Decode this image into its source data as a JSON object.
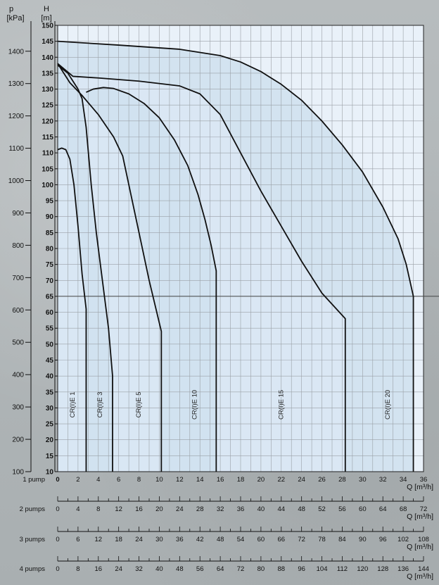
{
  "chart_data": {
    "type": "line",
    "p_axis": {
      "label_top": "p",
      "label_bottom": "[kPa]",
      "range": [
        100,
        1480
      ],
      "ticks": [
        100,
        200,
        300,
        400,
        500,
        600,
        700,
        800,
        900,
        1000,
        1100,
        1200,
        1300,
        1400
      ]
    },
    "h_axis": {
      "label_top": "H",
      "label_bottom": "[m]",
      "range": [
        10,
        150
      ],
      "ticks": [
        10,
        15,
        20,
        25,
        30,
        35,
        40,
        45,
        50,
        55,
        60,
        65,
        70,
        75,
        80,
        85,
        90,
        95,
        100,
        105,
        110,
        115,
        120,
        125,
        130,
        135,
        140,
        145,
        150
      ]
    },
    "x_range": [
      0,
      36
    ],
    "reference_line_h": 65,
    "q_label": "Q [m³/h]",
    "q_axes": [
      {
        "name": "1 pump",
        "ticks": [
          "0",
          "2",
          "4",
          "6",
          "8",
          "10",
          "12",
          "14",
          "16",
          "18",
          "20",
          "22",
          "24",
          "26",
          "28",
          "30",
          "32",
          "34",
          "36"
        ]
      },
      {
        "name": "2 pumps",
        "ticks": [
          "0",
          "4",
          "8",
          "12",
          "16",
          "20",
          "24",
          "28",
          "32",
          "36",
          "40",
          "44",
          "48",
          "52",
          "56",
          "60",
          "64",
          "68",
          "72"
        ]
      },
      {
        "name": "3 pumps",
        "ticks": [
          "0",
          "6",
          "12",
          "18",
          "24",
          "30",
          "36",
          "42",
          "48",
          "54",
          "60",
          "66",
          "72",
          "78",
          "84",
          "90",
          "96",
          "102",
          "108"
        ]
      },
      {
        "name": "4 pumps",
        "ticks": [
          "0",
          "8",
          "16",
          "24",
          "32",
          "40",
          "48",
          "56",
          "64",
          "72",
          "80",
          "88",
          "96",
          "104",
          "112",
          "120",
          "128",
          "136",
          "144"
        ]
      }
    ],
    "series": [
      {
        "name": "CR(I)E 1",
        "label_x": 1.5,
        "points": [
          [
            0,
            111
          ],
          [
            0.4,
            111.5
          ],
          [
            0.8,
            111
          ],
          [
            1.2,
            108
          ],
          [
            1.6,
            100
          ],
          [
            2.0,
            87
          ],
          [
            2.4,
            72
          ],
          [
            2.8,
            61
          ]
        ],
        "drop_x": 2.8
      },
      {
        "name": "CR(I)E 3",
        "label_x": 4.2,
        "points": [
          [
            0,
            137.5
          ],
          [
            1.0,
            135
          ],
          [
            1.6,
            132
          ],
          [
            2.0,
            130
          ],
          [
            2.4,
            127
          ],
          [
            2.8,
            118
          ],
          [
            3.3,
            100
          ],
          [
            3.8,
            85
          ],
          [
            4.4,
            70
          ],
          [
            5.0,
            55
          ],
          [
            5.4,
            40
          ]
        ],
        "drop_x": 5.4
      },
      {
        "name": "CR(I)E 5",
        "label_x": 8.0,
        "points": [
          [
            0,
            138
          ],
          [
            1.2,
            132
          ],
          [
            2.4,
            128
          ],
          [
            4,
            122
          ],
          [
            5.5,
            115
          ],
          [
            6.4,
            109
          ],
          [
            7,
            100
          ],
          [
            8,
            85
          ],
          [
            9,
            70
          ],
          [
            10.2,
            54
          ]
        ],
        "drop_x": 10.2
      },
      {
        "name": "CR(I)E 10",
        "label_x": 13.5,
        "points": [
          [
            2.8,
            129
          ],
          [
            3.5,
            130
          ],
          [
            4.5,
            130.5
          ],
          [
            5.5,
            130.2
          ],
          [
            7,
            128.5
          ],
          [
            8.5,
            125.5
          ],
          [
            10,
            121
          ],
          [
            11.5,
            114
          ],
          [
            12.8,
            106
          ],
          [
            13.8,
            97
          ],
          [
            14.5,
            89
          ],
          [
            15.1,
            81
          ],
          [
            15.6,
            73
          ]
        ],
        "drop_x": 15.6
      },
      {
        "name": "CR(I)E 15",
        "label_x": 22.0,
        "points": [
          [
            0,
            138
          ],
          [
            1.5,
            134
          ],
          [
            4,
            133.5
          ],
          [
            8,
            132.5
          ],
          [
            12,
            131
          ],
          [
            14,
            128.5
          ],
          [
            16,
            122
          ],
          [
            18,
            110
          ],
          [
            20,
            98
          ],
          [
            22,
            87
          ],
          [
            24,
            76
          ],
          [
            26,
            66
          ],
          [
            28.3,
            58
          ]
        ],
        "drop_x": 28.3
      },
      {
        "name": "CR(I)E 20",
        "label_x": 32.5,
        "points": [
          [
            0,
            145
          ],
          [
            6,
            143.8
          ],
          [
            12,
            142.5
          ],
          [
            16,
            140.5
          ],
          [
            18,
            138.5
          ],
          [
            20,
            135.5
          ],
          [
            22,
            131.5
          ],
          [
            24,
            126.5
          ],
          [
            26,
            120
          ],
          [
            28,
            112.5
          ],
          [
            30,
            104
          ],
          [
            32,
            93
          ],
          [
            33.5,
            83
          ],
          [
            34.3,
            75
          ],
          [
            35,
            65
          ]
        ],
        "drop_x": 35.0
      }
    ],
    "colors": {
      "plot_bg": "#e9f1f9",
      "shade_inner": "#cfe0ee",
      "shade_outer": "#dbe8f4",
      "curve": "#101010",
      "grid": "#9aa0a6"
    }
  }
}
